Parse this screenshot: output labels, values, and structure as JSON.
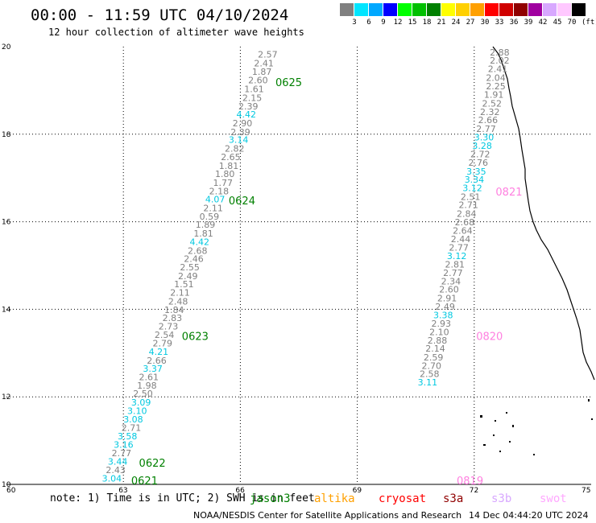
{
  "title": "00:00 - 11:59 UTC 04/10/2024",
  "subtitle": "12 hour collection of altimeter wave heights",
  "legend": {
    "unit": "(ft)",
    "labels": [
      "3",
      "6",
      "9",
      "12",
      "15",
      "18",
      "21",
      "24",
      "27",
      "30",
      "33",
      "36",
      "39",
      "42",
      "45",
      "70"
    ],
    "colors": [
      "#808080",
      "#00e5ff",
      "#00a8ff",
      "#0000ff",
      "#00ff00",
      "#00c000",
      "#008000",
      "#ffff00",
      "#ffd000",
      "#ffa000",
      "#ff0000",
      "#d00000",
      "#900000",
      "#a000a0",
      "#d8a8ff",
      "#ffc8ff",
      "#000000"
    ]
  },
  "axes": {
    "x_ticks": [
      "60",
      "63",
      "66",
      "69",
      "72",
      "75"
    ],
    "y_ticks": [
      "20",
      "18",
      "16",
      "14",
      "12",
      "10"
    ],
    "x_values": [
      60,
      63,
      66,
      69,
      72,
      75
    ],
    "y_values": [
      20,
      18,
      16,
      14,
      12,
      10
    ],
    "lon_range": [
      60,
      75
    ],
    "lat_range": [
      10,
      20
    ],
    "grid": true
  },
  "tracks": [
    {
      "labels": [
        {
          "text": "0625",
          "lon": 66.9,
          "lat": 19.1
        },
        {
          "text": "0624",
          "lon": 65.7,
          "lat": 16.4
        },
        {
          "text": "0623",
          "lon": 64.5,
          "lat": 13.3
        },
        {
          "text": "0622",
          "lon": 63.4,
          "lat": 10.4
        },
        {
          "text": "0621",
          "lon": 63.2,
          "lat": 10.0
        }
      ],
      "points": [
        {
          "v": "2.57",
          "c": "#808080",
          "lon": 66.45,
          "lat": 19.75
        },
        {
          "v": "2.41",
          "c": "#808080",
          "lon": 66.35,
          "lat": 19.55
        },
        {
          "v": "1.87",
          "c": "#808080",
          "lon": 66.3,
          "lat": 19.36
        },
        {
          "v": "2.60",
          "c": "#808080",
          "lon": 66.2,
          "lat": 19.16
        },
        {
          "v": "1.61",
          "c": "#808080",
          "lon": 66.1,
          "lat": 18.96
        },
        {
          "v": "2.15",
          "c": "#808080",
          "lon": 66.05,
          "lat": 18.76
        },
        {
          "v": "2.39",
          "c": "#808080",
          "lon": 65.95,
          "lat": 18.57
        },
        {
          "v": "4.42",
          "c": "#00c8e0",
          "lon": 65.9,
          "lat": 18.38
        },
        {
          "v": "2.90",
          "c": "#808080",
          "lon": 65.8,
          "lat": 18.18
        },
        {
          "v": "2.39",
          "c": "#808080",
          "lon": 65.75,
          "lat": 17.98
        },
        {
          "v": "3.14",
          "c": "#00c8e0",
          "lon": 65.7,
          "lat": 17.8
        },
        {
          "v": "2.82",
          "c": "#808080",
          "lon": 65.6,
          "lat": 17.6
        },
        {
          "v": "2.65",
          "c": "#808080",
          "lon": 65.5,
          "lat": 17.41
        },
        {
          "v": "1.81",
          "c": "#808080",
          "lon": 65.45,
          "lat": 17.21
        },
        {
          "v": "1.80",
          "c": "#808080",
          "lon": 65.35,
          "lat": 17.02
        },
        {
          "v": "1.77",
          "c": "#808080",
          "lon": 65.3,
          "lat": 16.82
        },
        {
          "v": "2.18",
          "c": "#808080",
          "lon": 65.2,
          "lat": 16.63
        },
        {
          "v": "4.07",
          "c": "#00c8e0",
          "lon": 65.1,
          "lat": 16.44
        },
        {
          "v": "2.11",
          "c": "#808080",
          "lon": 65.05,
          "lat": 16.24
        },
        {
          "v": "0.59",
          "c": "#808080",
          "lon": 64.95,
          "lat": 16.05
        },
        {
          "v": "1.89",
          "c": "#808080",
          "lon": 64.85,
          "lat": 15.86
        },
        {
          "v": "1.81",
          "c": "#808080",
          "lon": 64.8,
          "lat": 15.66
        },
        {
          "v": "4.42",
          "c": "#00c8e0",
          "lon": 64.7,
          "lat": 15.47
        },
        {
          "v": "2.68",
          "c": "#808080",
          "lon": 64.65,
          "lat": 15.27
        },
        {
          "v": "2.46",
          "c": "#808080",
          "lon": 64.55,
          "lat": 15.08
        },
        {
          "v": "2.55",
          "c": "#808080",
          "lon": 64.45,
          "lat": 14.89
        },
        {
          "v": "2.49",
          "c": "#808080",
          "lon": 64.4,
          "lat": 14.69
        },
        {
          "v": "1.51",
          "c": "#808080",
          "lon": 64.3,
          "lat": 14.5
        },
        {
          "v": "2.11",
          "c": "#808080",
          "lon": 64.2,
          "lat": 14.31
        },
        {
          "v": "2.48",
          "c": "#808080",
          "lon": 64.15,
          "lat": 14.11
        },
        {
          "v": "1.84",
          "c": "#808080",
          "lon": 64.05,
          "lat": 13.92
        },
        {
          "v": "2.83",
          "c": "#808080",
          "lon": 64.0,
          "lat": 13.73
        },
        {
          "v": "2.73",
          "c": "#808080",
          "lon": 63.9,
          "lat": 13.54
        },
        {
          "v": "2.54",
          "c": "#808080",
          "lon": 63.8,
          "lat": 13.35
        },
        {
          "v": "2.79",
          "c": "#808080",
          "lon": 63.75,
          "lat": 13.15
        },
        {
          "v": "4.21",
          "c": "#00c8e0",
          "lon": 63.65,
          "lat": 12.96
        },
        {
          "v": "2.66",
          "c": "#808080",
          "lon": 63.6,
          "lat": 12.76
        },
        {
          "v": "3.37",
          "c": "#00c8e0",
          "lon": 63.5,
          "lat": 12.57
        },
        {
          "v": "2.61",
          "c": "#808080",
          "lon": 63.4,
          "lat": 12.38
        },
        {
          "v": "1.98",
          "c": "#808080",
          "lon": 63.35,
          "lat": 12.19
        },
        {
          "v": "2.50",
          "c": "#808080",
          "lon": 63.25,
          "lat": 12.0
        },
        {
          "v": "3.09",
          "c": "#00c8e0",
          "lon": 63.2,
          "lat": 11.8
        },
        {
          "v": "3.10",
          "c": "#00c8e0",
          "lon": 63.1,
          "lat": 11.61
        },
        {
          "v": "3.08",
          "c": "#00c8e0",
          "lon": 63.0,
          "lat": 11.42
        },
        {
          "v": "2.71",
          "c": "#808080",
          "lon": 62.95,
          "lat": 11.22
        },
        {
          "v": "3.58",
          "c": "#00c8e0",
          "lon": 62.85,
          "lat": 11.03
        },
        {
          "v": "3.16",
          "c": "#00c8e0",
          "lon": 62.75,
          "lat": 10.84
        },
        {
          "v": "2.77",
          "c": "#808080",
          "lon": 62.7,
          "lat": 10.64
        },
        {
          "v": "3.44",
          "c": "#00c8e0",
          "lon": 62.6,
          "lat": 10.45
        },
        {
          "v": "2.43",
          "c": "#808080",
          "lon": 62.55,
          "lat": 10.26
        },
        {
          "v": "3.04",
          "c": "#00c8e0",
          "lon": 62.45,
          "lat": 10.06
        }
      ]
    },
    {
      "labels": [
        {
          "text": "0821",
          "lon": 72.55,
          "lat": 16.6
        },
        {
          "text": "0820",
          "lon": 72.05,
          "lat": 13.3
        },
        {
          "text": "0819",
          "lon": 71.55,
          "lat": 10.0
        }
      ],
      "points": [
        {
          "v": "2.88",
          "c": "#808080",
          "lon": 72.4,
          "lat": 19.8
        },
        {
          "v": "2.02",
          "c": "#808080",
          "lon": 72.4,
          "lat": 19.61
        },
        {
          "v": "2.41",
          "c": "#808080",
          "lon": 72.35,
          "lat": 19.42
        },
        {
          "v": "2.04",
          "c": "#808080",
          "lon": 72.3,
          "lat": 19.22
        },
        {
          "v": "2.25",
          "c": "#808080",
          "lon": 72.3,
          "lat": 19.03
        },
        {
          "v": "1.91",
          "c": "#808080",
          "lon": 72.25,
          "lat": 18.83
        },
        {
          "v": "2.52",
          "c": "#808080",
          "lon": 72.2,
          "lat": 18.63
        },
        {
          "v": "2.32",
          "c": "#808080",
          "lon": 72.15,
          "lat": 18.44
        },
        {
          "v": "2.66",
          "c": "#808080",
          "lon": 72.1,
          "lat": 18.25
        },
        {
          "v": "2.77",
          "c": "#808080",
          "lon": 72.05,
          "lat": 18.05
        },
        {
          "v": "3.30",
          "c": "#00c8e0",
          "lon": 72.0,
          "lat": 17.86
        },
        {
          "v": "3.28",
          "c": "#00c8e0",
          "lon": 71.95,
          "lat": 17.67
        },
        {
          "v": "2.72",
          "c": "#808080",
          "lon": 71.9,
          "lat": 17.47
        },
        {
          "v": "2.76",
          "c": "#808080",
          "lon": 71.85,
          "lat": 17.28
        },
        {
          "v": "3.35",
          "c": "#00c8e0",
          "lon": 71.8,
          "lat": 17.08
        },
        {
          "v": "3.34",
          "c": "#00c8e0",
          "lon": 71.75,
          "lat": 16.89
        },
        {
          "v": "3.12",
          "c": "#00c8e0",
          "lon": 71.7,
          "lat": 16.7
        },
        {
          "v": "2.51",
          "c": "#808080",
          "lon": 71.65,
          "lat": 16.5
        },
        {
          "v": "2.71",
          "c": "#808080",
          "lon": 71.6,
          "lat": 16.31
        },
        {
          "v": "2.84",
          "c": "#808080",
          "lon": 71.55,
          "lat": 16.11
        },
        {
          "v": "2.68",
          "c": "#808080",
          "lon": 71.5,
          "lat": 15.92
        },
        {
          "v": "2.64",
          "c": "#808080",
          "lon": 71.45,
          "lat": 15.73
        },
        {
          "v": "2.44",
          "c": "#808080",
          "lon": 71.4,
          "lat": 15.53
        },
        {
          "v": "2.77",
          "c": "#808080",
          "lon": 71.35,
          "lat": 15.34
        },
        {
          "v": "3.12",
          "c": "#00c8e0",
          "lon": 71.3,
          "lat": 15.15
        },
        {
          "v": "2.81",
          "c": "#808080",
          "lon": 71.25,
          "lat": 14.95
        },
        {
          "v": "2.77",
          "c": "#808080",
          "lon": 71.2,
          "lat": 14.76
        },
        {
          "v": "2.34",
          "c": "#808080",
          "lon": 71.15,
          "lat": 14.57
        },
        {
          "v": "2.60",
          "c": "#808080",
          "lon": 71.1,
          "lat": 14.38
        },
        {
          "v": "2.91",
          "c": "#808080",
          "lon": 71.05,
          "lat": 14.18
        },
        {
          "v": "2.49",
          "c": "#808080",
          "lon": 71.0,
          "lat": 13.99
        },
        {
          "v": "3.38",
          "c": "#00c8e0",
          "lon": 70.95,
          "lat": 13.8
        },
        {
          "v": "2.93",
          "c": "#808080",
          "lon": 70.9,
          "lat": 13.6
        },
        {
          "v": "2.10",
          "c": "#808080",
          "lon": 70.85,
          "lat": 13.41
        },
        {
          "v": "2.88",
          "c": "#808080",
          "lon": 70.8,
          "lat": 13.22
        },
        {
          "v": "2.14",
          "c": "#808080",
          "lon": 70.75,
          "lat": 13.03
        },
        {
          "v": "2.59",
          "c": "#808080",
          "lon": 70.7,
          "lat": 12.83
        },
        {
          "v": "2.70",
          "c": "#808080",
          "lon": 70.65,
          "lat": 12.64
        },
        {
          "v": "2.58",
          "c": "#808080",
          "lon": 70.6,
          "lat": 12.45
        },
        {
          "v": "3.11",
          "c": "#00c8e0",
          "lon": 70.55,
          "lat": 12.26
        }
      ]
    }
  ],
  "note": "note: 1) Time is in UTC; 2) SWH is in feet",
  "satellites": [
    {
      "name": "jason3",
      "color": "#008000"
    },
    {
      "name": "altika",
      "color": "#ffa000"
    },
    {
      "name": "cryosat",
      "color": "#ff0000"
    },
    {
      "name": "s3a",
      "color": "#900000"
    },
    {
      "name": "s3b",
      "color": "#d8a8ff"
    },
    {
      "name": "swot",
      "color": "#ffa8ff"
    }
  ],
  "credit": "NOAA/NESDIS Center for Satellite Applications and Research",
  "timestamp": "14 Dec 04:44:20 UTC 2024",
  "chart_data": {
    "type": "scatter",
    "title": "00:00 - 11:59 UTC 04/10/2024",
    "subtitle": "12 hour collection of altimeter wave heights",
    "xlim": [
      60,
      75
    ],
    "ylim": [
      10,
      20
    ],
    "grid": true
  }
}
